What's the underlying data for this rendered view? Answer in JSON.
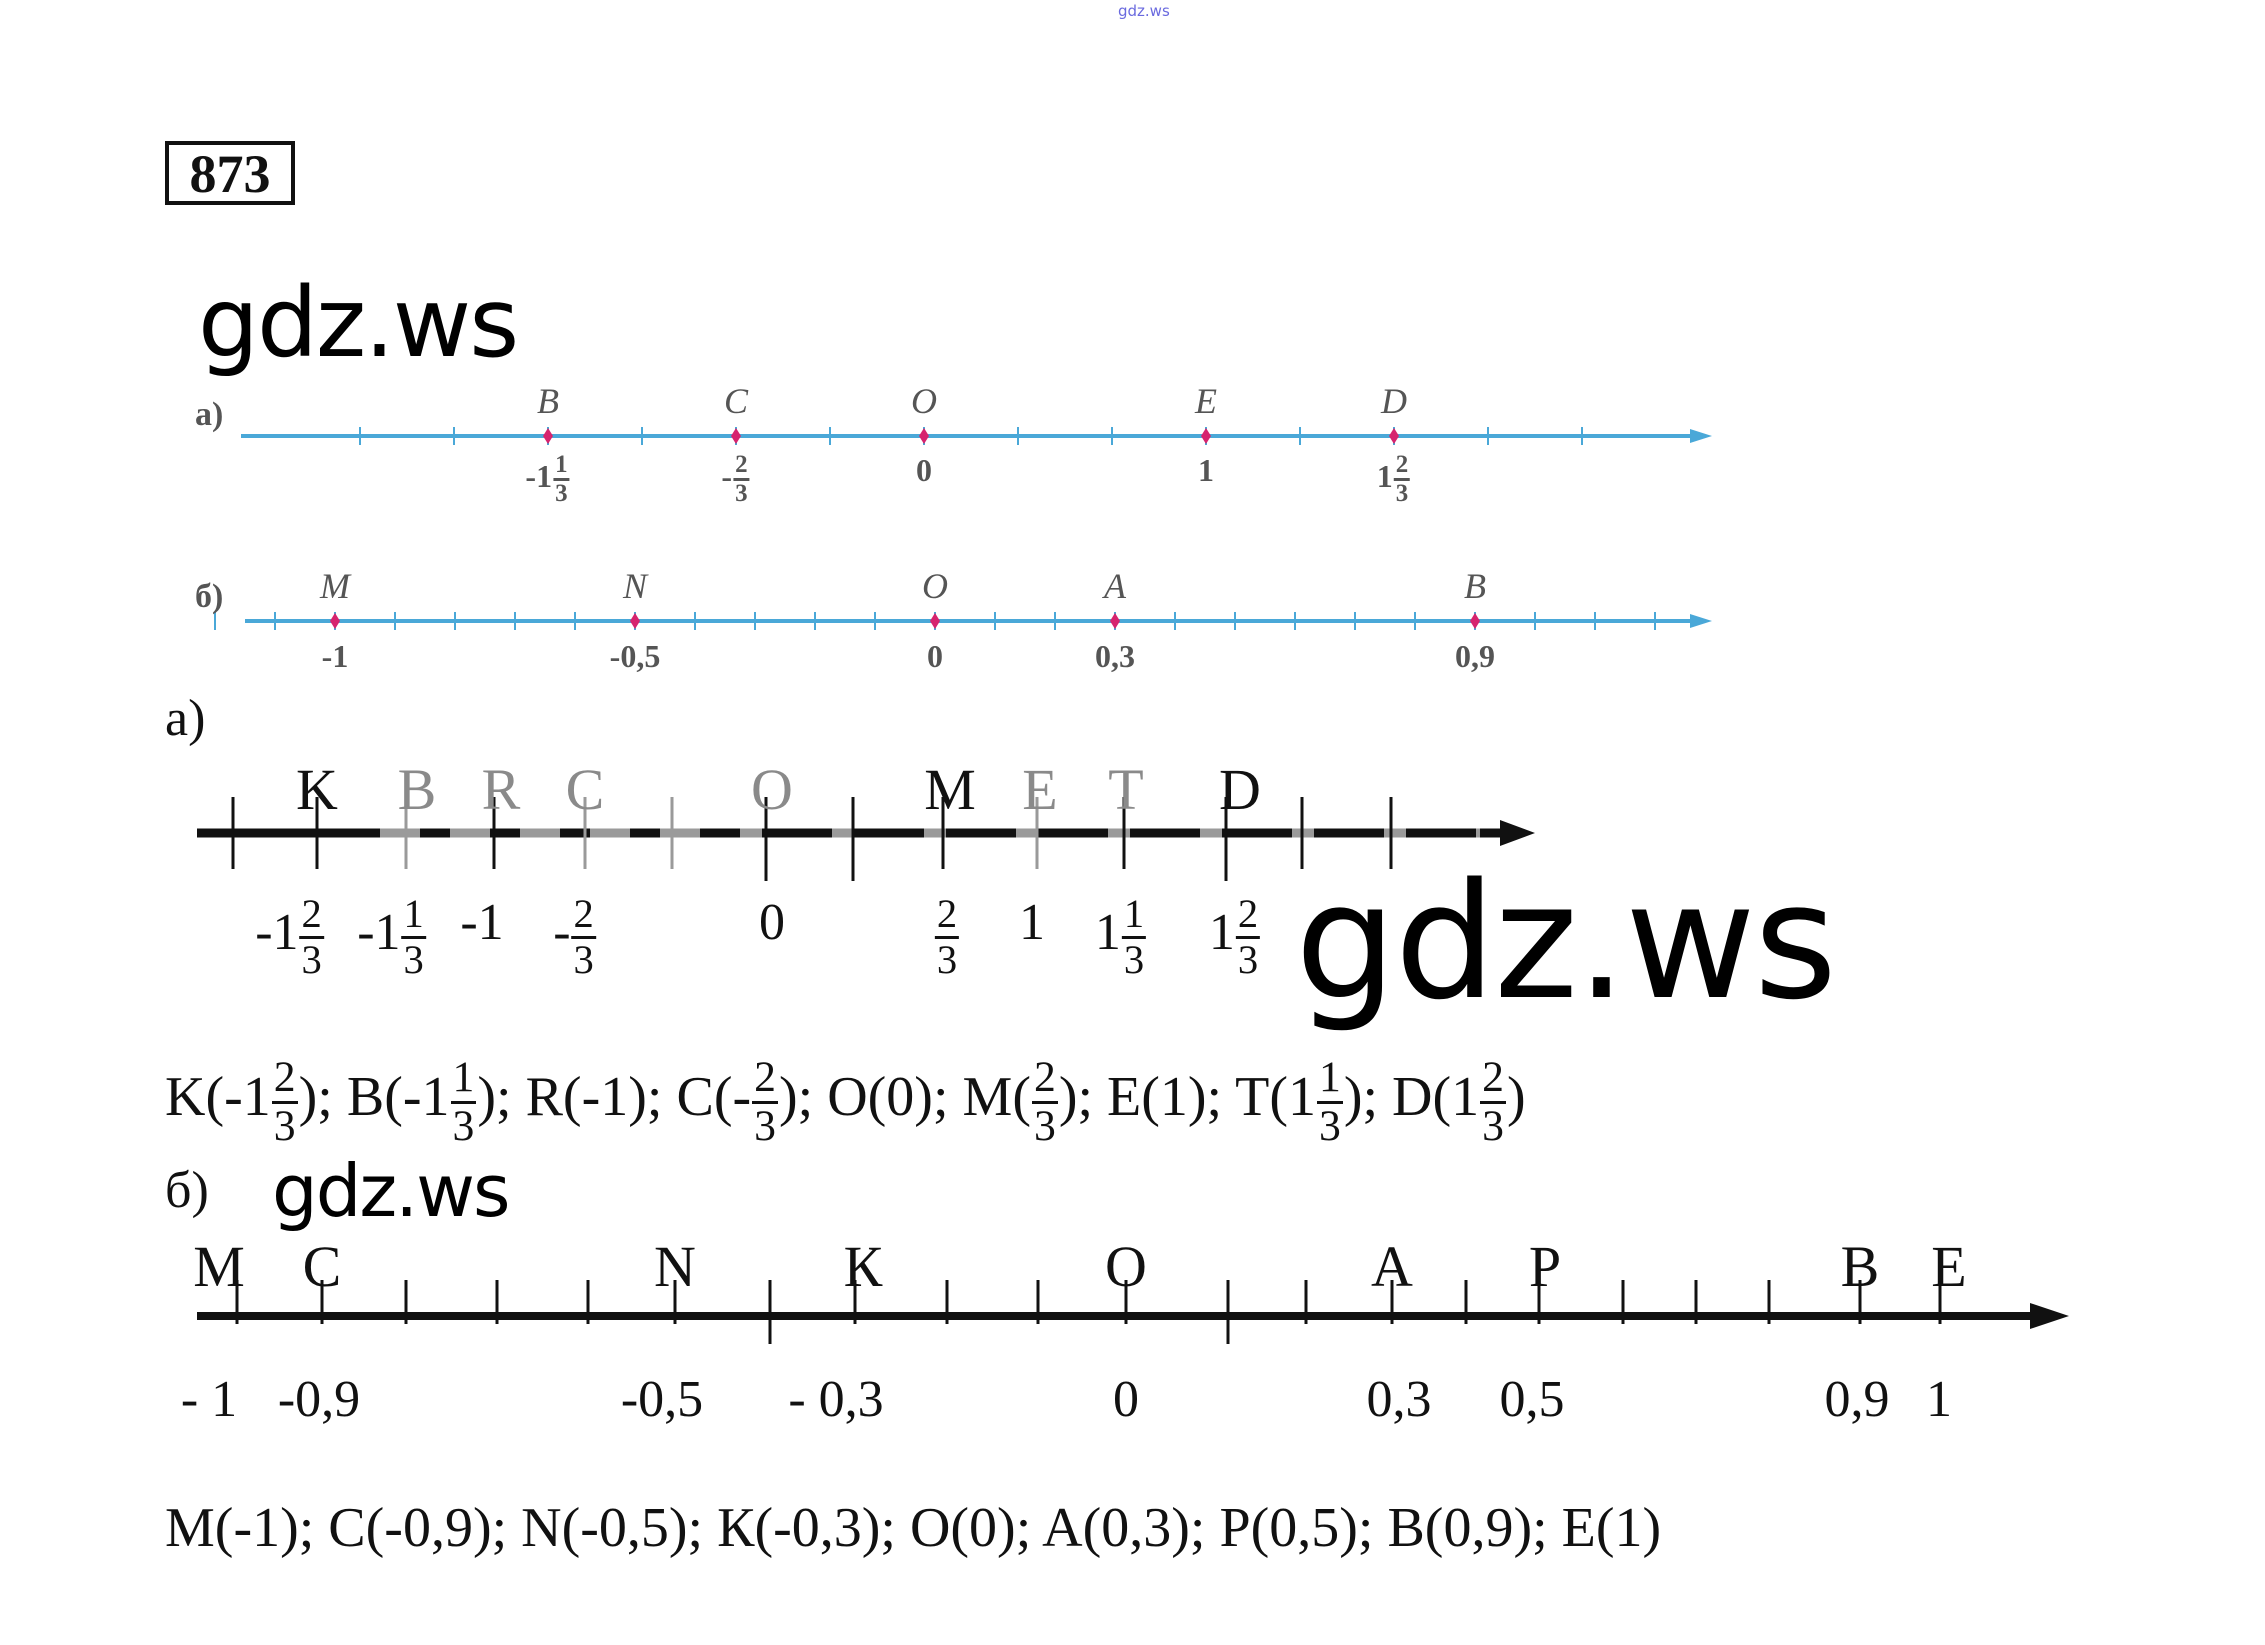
{
  "top_watermark": "gdz.ws",
  "exercise_number": "873",
  "watermarks": [
    "gdz.ws",
    "gdz.ws",
    "gdz.ws"
  ],
  "colors": {
    "axis_blue": "#4aa8d8",
    "point_pink": "#d6246e",
    "ink": "#111111",
    "gray_ink": "#8a8a8a"
  },
  "textbook": {
    "a": {
      "label": "а)",
      "points": [
        {
          "letter": "B",
          "whole": "-1",
          "num": "1",
          "den": "3"
        },
        {
          "letter": "C",
          "whole": "-",
          "num": "2",
          "den": "3"
        },
        {
          "letter": "O",
          "whole": "0"
        },
        {
          "letter": "E",
          "whole": "1"
        },
        {
          "letter": "D",
          "whole": "1",
          "num": "2",
          "den": "3"
        }
      ]
    },
    "b": {
      "label": "б)",
      "points": [
        {
          "letter": "M",
          "whole": "-1"
        },
        {
          "letter": "N",
          "whole": "-0,5"
        },
        {
          "letter": "O",
          "whole": "0"
        },
        {
          "letter": "A",
          "whole": "0,3"
        },
        {
          "letter": "B",
          "whole": "0,9"
        }
      ]
    }
  },
  "solution_a": {
    "label": "а)",
    "letters": [
      "K",
      "B",
      "R",
      "C",
      "O",
      "M",
      "E",
      "T",
      "D"
    ],
    "values": [
      {
        "whole": "-1",
        "num": "2",
        "den": "3"
      },
      {
        "whole": "-1",
        "num": "1",
        "den": "3"
      },
      {
        "whole": "-1"
      },
      {
        "whole": "-",
        "num": "2",
        "den": "3"
      },
      {
        "whole": "0"
      },
      {
        "whole": "",
        "num": "2",
        "den": "3"
      },
      {
        "whole": "1"
      },
      {
        "whole": "1",
        "num": "1",
        "den": "3"
      },
      {
        "whole": "1",
        "num": "2",
        "den": "3"
      }
    ],
    "answer": [
      {
        "name": "K",
        "whole": "-1",
        "num": "2",
        "den": "3"
      },
      {
        "name": "B",
        "whole": "-1",
        "num": "1",
        "den": "3"
      },
      {
        "name": "R",
        "whole": "-1"
      },
      {
        "name": "C",
        "whole": "-",
        "num": "2",
        "den": "3"
      },
      {
        "name": "O",
        "whole": "0"
      },
      {
        "name": "M",
        "whole": "",
        "num": "2",
        "den": "3"
      },
      {
        "name": "E",
        "whole": "1"
      },
      {
        "name": "T",
        "whole": "1",
        "num": "1",
        "den": "3"
      },
      {
        "name": "D",
        "whole": "1",
        "num": "2",
        "den": "3"
      }
    ]
  },
  "solution_b": {
    "label": "б)",
    "letters": [
      "M",
      "C",
      "N",
      "К",
      "O",
      "A",
      "P",
      "B",
      "E"
    ],
    "values": [
      "- 1",
      "-0,9",
      "-0,5",
      "- 0,3",
      "0",
      "0,3",
      "0,5",
      "0,9",
      "1"
    ],
    "answer": "M(-1); C(-0,9); N(-0,5); К(-0,3); O(0); A(0,3); P(0,5); B(0,9); E(1)"
  }
}
